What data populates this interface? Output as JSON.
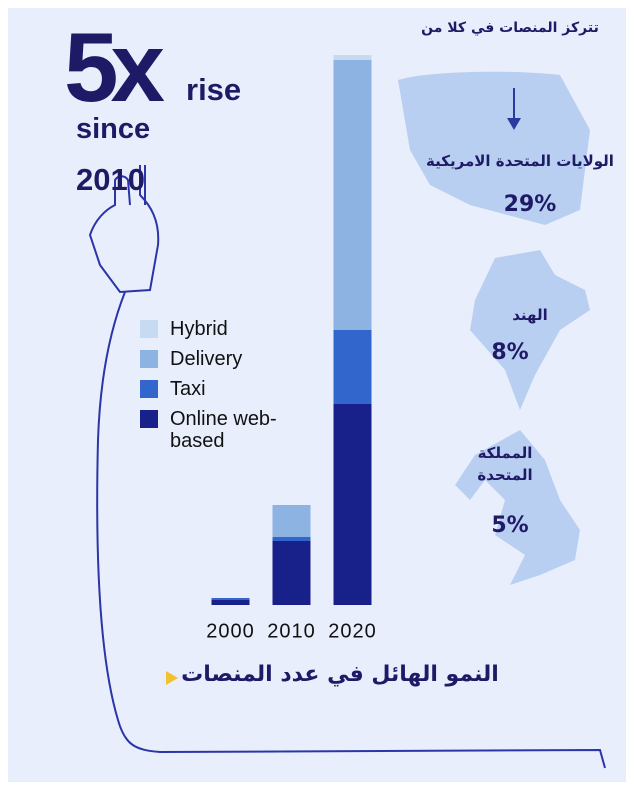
{
  "chart_data": {
    "type": "stacked_bar",
    "headline": {
      "big": "5x",
      "rise": "rise",
      "since": "since",
      "year": "2010"
    },
    "categories": [
      "2000",
      "2010",
      "2020"
    ],
    "series": [
      {
        "name": "Online web-based",
        "color": "#18208a",
        "values": [
          5,
          64,
          201
        ]
      },
      {
        "name": "Taxi",
        "color": "#3366cc",
        "values": [
          2,
          4,
          74
        ]
      },
      {
        "name": "Delivery",
        "color": "#8db3e2",
        "values": [
          0,
          32,
          270
        ]
      },
      {
        "name": "Hybrid",
        "color": "#c6daf2",
        "values": [
          0,
          0,
          5
        ]
      }
    ],
    "ylim": [
      0,
      550
    ],
    "title": "النمو الهائل في عدد المنصات",
    "countries_title": "تتركز المنصات في كلا من",
    "countries": [
      {
        "name": "الولايات المتحدة الامريكية",
        "share": "29%"
      },
      {
        "name": "الهند",
        "share": "8%"
      },
      {
        "name": "المملكة المتحدة",
        "share": "5%"
      }
    ]
  }
}
